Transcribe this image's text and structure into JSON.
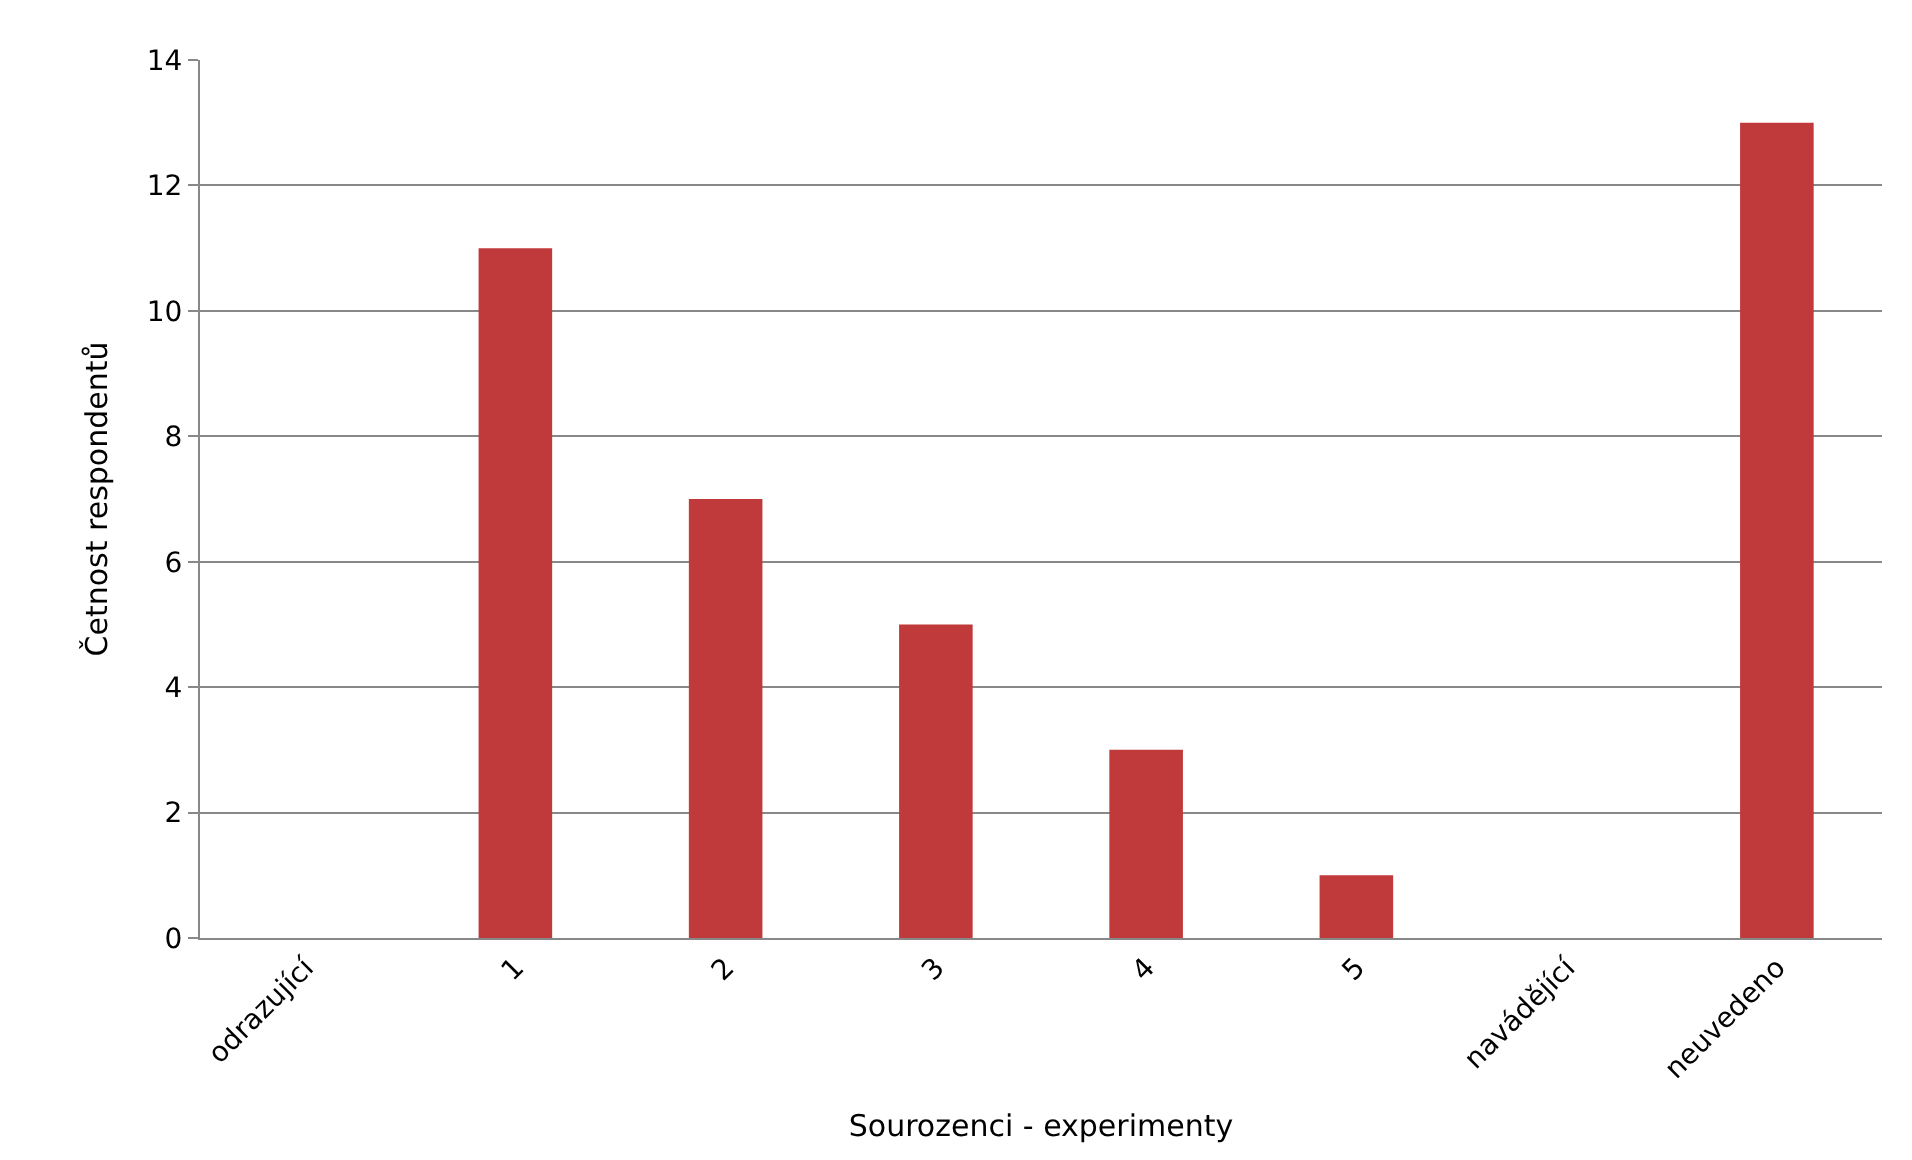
{
  "chart_data": {
    "type": "bar",
    "xlabel": "Sourozenci - experimenty",
    "ylabel": "Četnost respondentů",
    "categories": [
      "odrazující",
      "1",
      "2",
      "3",
      "4",
      "5",
      "navádějící",
      "neuvedeno"
    ],
    "values": [
      0,
      11,
      7,
      5,
      3,
      1,
      0,
      13
    ],
    "color": "#c0393b",
    "ylim": [
      0,
      14
    ],
    "yticks": [
      0,
      2,
      4,
      6,
      8,
      10,
      12,
      14
    ],
    "grid": "y"
  }
}
